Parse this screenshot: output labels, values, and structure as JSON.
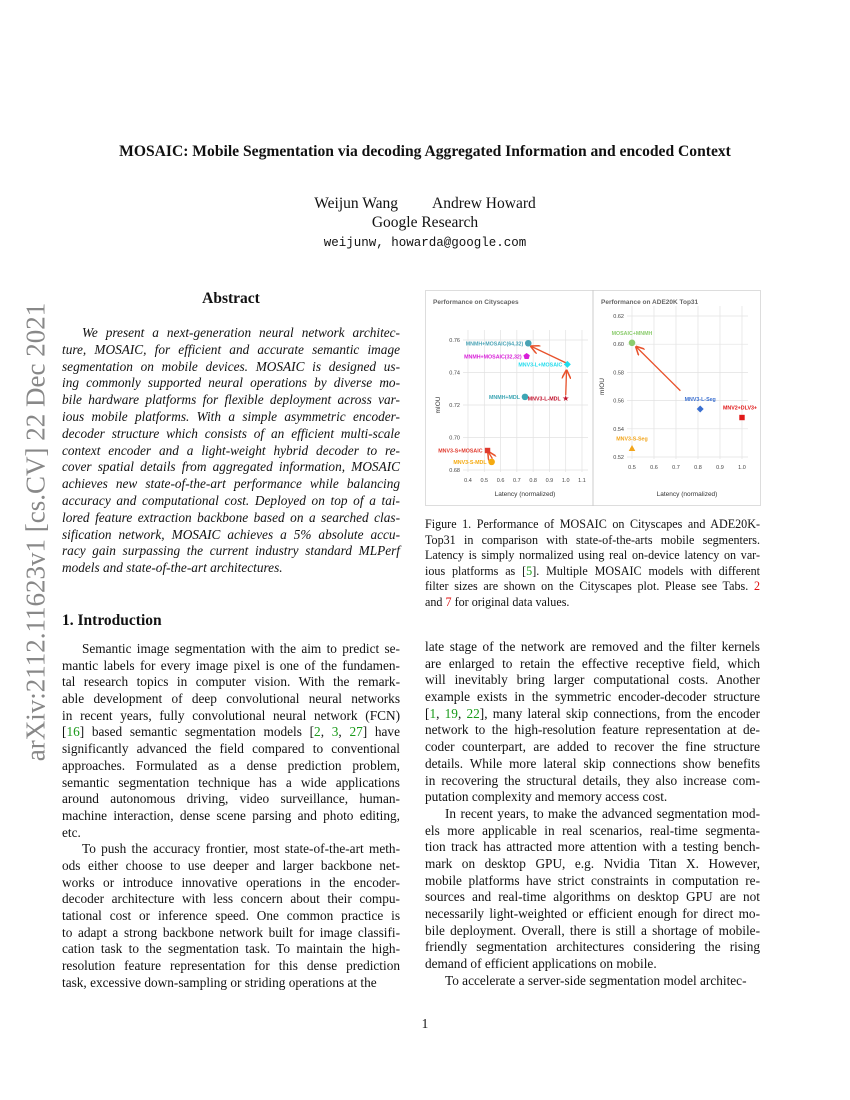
{
  "side_label": "arXiv:2112.11623v1  [cs.CV]  22 Dec 2021",
  "title": "MOSAIC: Mobile Segmentation via decoding Aggregated Information and encoded Context",
  "authors": [
    "Weijun Wang",
    "Andrew Howard"
  ],
  "affiliation": "Google Research",
  "email": "weijunw, howarda@google.com",
  "abstract": {
    "heading": "Abstract",
    "paragraphs": [
      [
        "We present a next-generation neural network architec-",
        "ture, MOSAIC, for efficient and accurate semantic image",
        "segmentation on mobile devices. MOSAIC is designed us-",
        "ing commonly supported neural operations by diverse mo-",
        "bile hardware platforms for flexible deployment across var-",
        "ious mobile platforms. With a simple asymmetric encoder-",
        "decoder structure which consists of an efficient multi-scale",
        "context encoder and a light-weight hybrid decoder to re-",
        "cover spatial details from aggregated information, MOSAIC",
        "achieves new state-of-the-art performance while balancing",
        "accuracy and computational cost. Deployed on top of a tai-",
        "lored feature extraction backbone based on a searched clas-",
        "sification network, MOSAIC achieves a 5% absolute accu-",
        "racy gain surpassing the current industry standard MLPerf",
        "models and state-of-the-art architectures."
      ]
    ]
  },
  "intro": {
    "heading": "1. Introduction",
    "left_paragraphs": [
      [
        "Semantic image segmentation with the aim to predict se-",
        "mantic labels for every image pixel is one of the fundamen-",
        "tal research topics in computer vision. With the remark-",
        "able development of deep convolutional neural networks",
        "in recent years, fully convolutional neural network (FCN)",
        "[16] based semantic segmentation models [2, 3, 27] have",
        "significantly advanced the field compared to conventional",
        "approaches. Formulated as a dense prediction problem,",
        "semantic segmentation technique has a wide applications",
        "around autonomous driving, video surveillance, human-",
        "machine interaction, dense scene parsing and photo editing,",
        "etc."
      ],
      [
        "To push the accuracy frontier, most state-of-the-art meth-",
        "ods either choose to use deeper and larger backbone net-",
        "works or introduce innovative operations in the encoder-",
        "decoder architecture with less concern about their compu-",
        "tational cost or inference speed. One common practice is",
        "to adapt a strong backbone network built for image classifi-",
        "cation task to the segmentation task. To maintain the high-",
        "resolution feature representation for this dense prediction",
        "task, excessive down-sampling or striding operations at the"
      ]
    ],
    "right_paragraphs": [
      [
        "late stage of the network are removed and the filter kernels",
        "are enlarged to retain the effective receptive field, which",
        "will inevitably bring larger computational costs. Another",
        "example exists in the symmetric encoder-decoder structure",
        "[1, 19, 22], many lateral skip connections, from the encoder",
        "network to the high-resolution feature representation at de-",
        "coder counterpart, are added to recover the fine structure",
        "details. While more lateral skip connections show benefits",
        "in recovering the structural details, they also increase com-",
        "putation complexity and memory access cost."
      ],
      [
        "In recent years, to make the advanced segmentation mod-",
        "els more applicable in real scenarios, real-time segmenta-",
        "tion track has attracted more attention with a testing bench-",
        "mark on desktop GPU, e.g.  Nvidia Titan X. However,",
        "mobile platforms have strict constraints in computation re-",
        "sources and real-time algorithms on desktop GPU are not",
        "necessarily light-weighted or efficient enough for direct mo-",
        "bile deployment. Overall, there is still a shortage of mobile-",
        "friendly segmentation architectures considering the rising",
        "demand of efficient applications on mobile."
      ],
      [
        "To accelerate a server-side segmentation model architec-"
      ]
    ]
  },
  "caption": {
    "paragraphs": [
      [
        "Figure 1. Performance of MOSAIC on Cityscapes and ADE20K-",
        "Top31 in comparison with state-of-the-arts mobile segmenters.",
        "Latency is simply normalized using real on-device latency on var-",
        "ious platforms as [5]. Multiple MOSAIC models with different",
        "filter sizes are shown on the Cityscapes plot. Please see Tabs. 2",
        "and 7 for original data values."
      ]
    ]
  },
  "citation_color": "#1a9a1a",
  "reference_color": "#e01010",
  "page_number": "1",
  "chart_data": [
    {
      "type": "scatter",
      "title": "Performance on Cityscapes",
      "xlabel": "Latency (normalized)",
      "ylabel": "mIOU",
      "xlim": [
        0.4,
        1.1
      ],
      "ylim": [
        0.68,
        0.76
      ],
      "xticks": [
        "0.4",
        "0.5",
        "0.6",
        "0.7",
        "0.8",
        "0.9",
        "1.0",
        "1.1"
      ],
      "yticks": [
        "0.68",
        "0.70",
        "0.72",
        "0.74",
        "0.76"
      ],
      "grid": true,
      "points": [
        {
          "label": "MNMH+MOSAIC(64,32)",
          "x": 0.77,
          "y": 0.758,
          "color": "#4aa3b5",
          "marker": "circle"
        },
        {
          "label": "MNMH+MOSAIC(32,32)",
          "x": 0.76,
          "y": 0.75,
          "color": "#d81ed8",
          "marker": "pentagon"
        },
        {
          "label": "MNV3-L+MOSAIC",
          "x": 1.01,
          "y": 0.745,
          "color": "#22dced",
          "marker": "diamond"
        },
        {
          "label": "MNMH+MDL",
          "x": 0.75,
          "y": 0.725,
          "color": "#3ea6b4",
          "marker": "circle"
        },
        {
          "label": "MNV3-L-MDL",
          "x": 1.0,
          "y": 0.724,
          "color": "#c0102a",
          "marker": "star"
        },
        {
          "label": "MNV3-S+MOSAIC",
          "x": 0.52,
          "y": 0.692,
          "color": "#e03a2e",
          "marker": "square"
        },
        {
          "label": "MNV3-S-MDL",
          "x": 0.545,
          "y": 0.685,
          "color": "#f5aa10",
          "marker": "circle"
        }
      ],
      "arrows": [
        {
          "from": [
            1.0,
            0.726
          ],
          "to": [
            1.005,
            0.741
          ]
        },
        {
          "from": [
            1.0,
            0.746
          ],
          "to": [
            0.79,
            0.756
          ]
        },
        {
          "from": [
            0.55,
            0.687
          ],
          "to": [
            0.525,
            0.691
          ]
        }
      ],
      "arrow_color": "#e8522c"
    },
    {
      "type": "scatter",
      "title": "Performance on ADE20K Top31",
      "xlabel": "Latency (normalized)",
      "ylabel": "mIOU",
      "xlim": [
        0.45,
        1.05
      ],
      "ylim": [
        0.51,
        0.62
      ],
      "xticks": [
        "0.5",
        "0.6",
        "0.7",
        "0.8",
        "0.9",
        "1.0"
      ],
      "yticks": [
        "0.52",
        "0.54",
        "0.56",
        "0.58",
        "0.60",
        "0.62"
      ],
      "grid": true,
      "points": [
        {
          "label": "MOSAIC+MNMH",
          "x": 0.5,
          "y": 0.601,
          "color": "#8ccc6e",
          "marker": "circle"
        },
        {
          "label": "MNV3-L-Seg",
          "x": 0.81,
          "y": 0.554,
          "color": "#3a6fd0",
          "marker": "diamond"
        },
        {
          "label": "MNV2+DLV3+",
          "x": 1.0,
          "y": 0.548,
          "color": "#e01818",
          "marker": "square"
        },
        {
          "label": "MNV3-S-Seg",
          "x": 0.5,
          "y": 0.526,
          "color": "#f2a51c",
          "marker": "triangle"
        }
      ],
      "arrows": [
        {
          "from": [
            0.72,
            0.567
          ],
          "to": [
            0.52,
            0.598
          ]
        }
      ],
      "arrow_color": "#e8522c"
    }
  ]
}
